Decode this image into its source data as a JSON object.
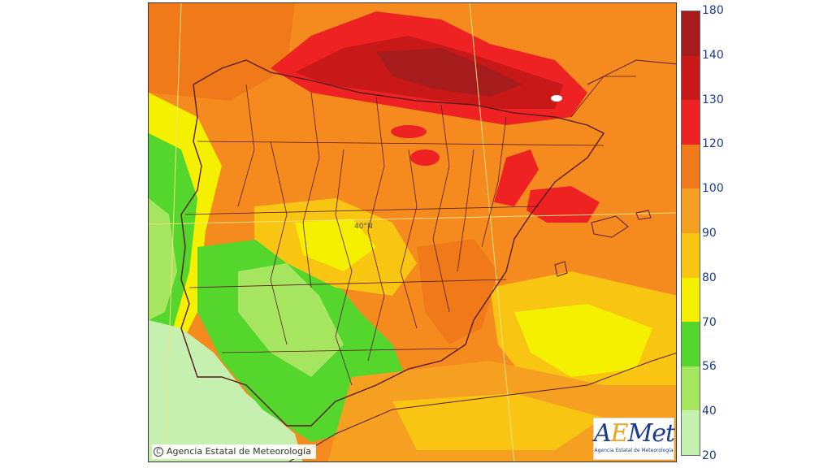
{
  "copyright": {
    "symbol": "C",
    "text": "Agencia Estatal de Meteorología"
  },
  "logo": {
    "word_a": "A",
    "word_e": "E",
    "word_rest": "Met",
    "subtitle": "Agencia Estatal de Meteorología"
  },
  "map": {
    "lat_label": "40°N"
  },
  "legend": {
    "labels": [
      "180",
      "140",
      "130",
      "120",
      "100",
      "90",
      "80",
      "70",
      "56",
      "40",
      "20"
    ],
    "colors": [
      "#a61c1c",
      "#c81818",
      "#ee2222",
      "#f07a1a",
      "#f5a020",
      "#f7c512",
      "#f4f000",
      "#54d62d",
      "#a6e560",
      "#c6f0b0"
    ]
  }
}
